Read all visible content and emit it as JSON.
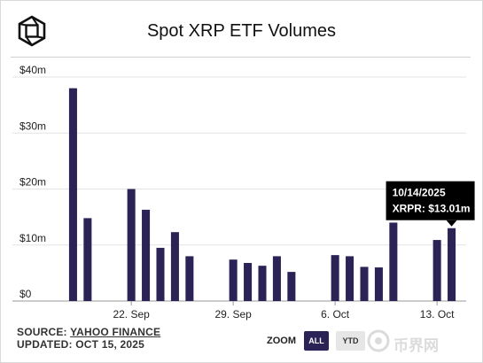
{
  "header": {
    "title": "Spot XRP ETF Volumes",
    "logo_icon": "cube-logo-icon"
  },
  "chart_data": {
    "type": "bar",
    "title": "Spot XRP ETF Volumes",
    "ylim": [
      0,
      40
    ],
    "y_unit": "millions USD",
    "y_ticks": [
      {
        "value": 0,
        "label": "$0"
      },
      {
        "value": 10,
        "label": "$10m"
      },
      {
        "value": 20,
        "label": "$20m"
      },
      {
        "value": 30,
        "label": "$30m"
      },
      {
        "value": 40,
        "label": "$40m"
      }
    ],
    "x_ticks": [
      {
        "date": "2025-09-22",
        "label": "22. Sep"
      },
      {
        "date": "2025-09-29",
        "label": "29. Sep"
      },
      {
        "date": "2025-10-06",
        "label": "6. Oct"
      },
      {
        "date": "2025-10-13",
        "label": "13. Oct"
      }
    ],
    "x_range": [
      "2025-09-17",
      "2025-10-15"
    ],
    "bar_color": "#2b2255",
    "grid": "horizontal",
    "series": [
      {
        "points": [
          {
            "date": "2025-09-18",
            "value": 38.0
          },
          {
            "date": "2025-09-19",
            "value": 14.8
          },
          {
            "date": "2025-09-22",
            "value": 20.0
          },
          {
            "date": "2025-09-23",
            "value": 16.3
          },
          {
            "date": "2025-09-24",
            "value": 9.5
          },
          {
            "date": "2025-09-25",
            "value": 12.3
          },
          {
            "date": "2025-09-26",
            "value": 8.0
          },
          {
            "date": "2025-09-29",
            "value": 7.4
          },
          {
            "date": "2025-09-30",
            "value": 6.8
          },
          {
            "date": "2025-10-01",
            "value": 6.3
          },
          {
            "date": "2025-10-02",
            "value": 8.0
          },
          {
            "date": "2025-10-03",
            "value": 5.2
          },
          {
            "date": "2025-10-06",
            "value": 8.2
          },
          {
            "date": "2025-10-07",
            "value": 8.0
          },
          {
            "date": "2025-10-08",
            "value": 6.1
          },
          {
            "date": "2025-10-09",
            "value": 6.0
          },
          {
            "date": "2025-10-10",
            "value": 14.0
          },
          {
            "date": "2025-10-13",
            "value": 10.9
          },
          {
            "date": "2025-10-14",
            "value": 13.01
          }
        ]
      }
    ],
    "tooltip": {
      "date": "2025-10-14",
      "date_label": "10/14/2025",
      "text": "XRPR: $13.01m"
    }
  },
  "footer": {
    "source_prefix": "SOURCE: ",
    "source_link": "YAHOO FINANCE",
    "updated": "UPDATED: OCT 15, 2025"
  },
  "zoom": {
    "label": "ZOOM",
    "options": [
      "ALL",
      "YTD"
    ],
    "selected": "ALL"
  },
  "watermark": {
    "text": "币界网",
    "icon": "watermark-coin-icon"
  }
}
